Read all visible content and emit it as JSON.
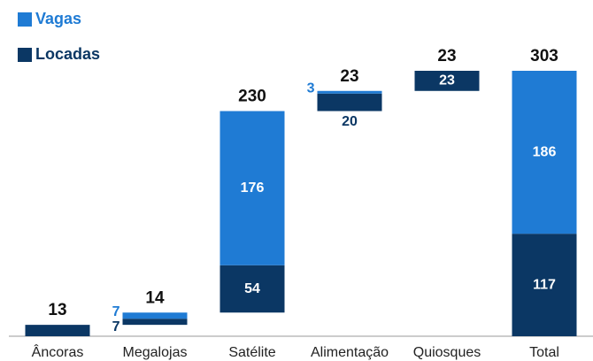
{
  "chart_data": {
    "type": "waterfall",
    "categories": [
      "Âncoras",
      "Megalojas",
      "Satélite",
      "Alimentação",
      "Quiosques",
      "Total"
    ],
    "series": [
      {
        "name": "Locadas",
        "color": "#0b3764",
        "values": [
          13,
          7,
          54,
          20,
          23,
          117
        ]
      },
      {
        "name": "Vagas",
        "color": "#1f7bd4",
        "values": [
          null,
          7,
          176,
          3,
          null,
          186
        ]
      }
    ],
    "totals": [
      13,
      14,
      230,
      23,
      23,
      303
    ],
    "legend": "top-left"
  }
}
